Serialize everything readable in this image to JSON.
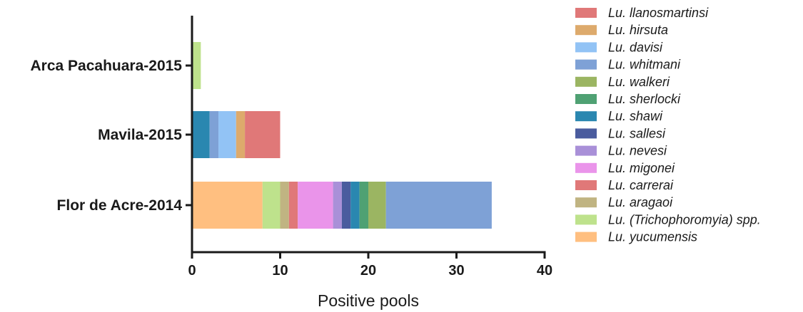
{
  "chart_data": {
    "type": "bar",
    "orientation": "horizontal",
    "stacked": true,
    "xlabel": "Positive pools",
    "xlim": [
      0,
      40
    ],
    "xticks": [
      0,
      10,
      20,
      30,
      40
    ],
    "grid": false,
    "legend_position": "right",
    "categories": [
      "Arca Pacahuara-2015",
      "Mavila-2015",
      "Flor de Acre-2014"
    ],
    "series": [
      {
        "name": "Lu. yucumensis",
        "color": "#FFBF80",
        "values": [
          0,
          0,
          8
        ]
      },
      {
        "name": "Lu. (Trichophoromyia) spp.",
        "color": "#BEE28C",
        "values": [
          1,
          0,
          2
        ]
      },
      {
        "name": "Lu. aragaoi",
        "color": "#C0B482",
        "values": [
          0,
          0,
          1
        ]
      },
      {
        "name": "Lu. carrerai",
        "color": "#E07878",
        "values": [
          0,
          0,
          1
        ]
      },
      {
        "name": "Lu. migonei",
        "color": "#EA94EA",
        "values": [
          0,
          0,
          4
        ]
      },
      {
        "name": "Lu. nevesi",
        "color": "#A990D8",
        "values": [
          0,
          0,
          1
        ]
      },
      {
        "name": "Lu. sallesi",
        "color": "#4A5C9E",
        "values": [
          0,
          0,
          1
        ]
      },
      {
        "name": "Lu. shawi",
        "color": "#2A87B0",
        "values": [
          0,
          2,
          1
        ]
      },
      {
        "name": "Lu. sherlocki",
        "color": "#4FA173",
        "values": [
          0,
          0,
          1
        ]
      },
      {
        "name": "Lu. walkeri",
        "color": "#9BB562",
        "values": [
          0,
          0,
          2
        ]
      },
      {
        "name": "Lu. whitmani",
        "color": "#7EA1D6",
        "values": [
          0,
          1,
          12
        ]
      },
      {
        "name": "Lu. davisi",
        "color": "#92C3F5",
        "values": [
          0,
          2,
          0
        ]
      },
      {
        "name": "Lu. hirsuta",
        "color": "#DDAA6C",
        "values": [
          0,
          1,
          0
        ]
      },
      {
        "name": "Lu. llanosmartinsi",
        "color": "#E07878",
        "values": [
          0,
          4,
          0
        ]
      }
    ],
    "legend_order": [
      "Lu. llanosmartinsi",
      "Lu. hirsuta",
      "Lu. davisi",
      "Lu. whitmani",
      "Lu. walkeri",
      "Lu. sherlocki",
      "Lu. shawi",
      "Lu. sallesi",
      "Lu. nevesi",
      "Lu. migonei",
      "Lu. carrerai",
      "Lu. aragaoi",
      "Lu. (Trichophoromyia) spp.",
      "Lu. yucumensis"
    ]
  }
}
